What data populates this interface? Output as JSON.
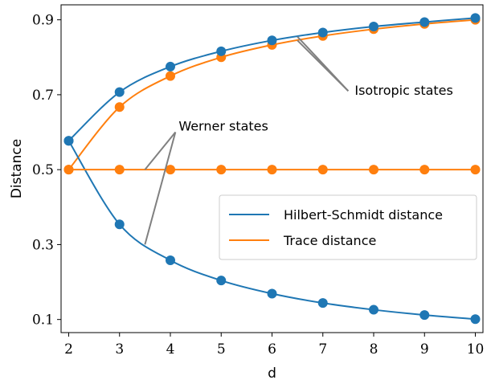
{
  "chart_data": {
    "type": "line",
    "xlabel": "d",
    "ylabel": "Distance",
    "xlim": [
      1.85,
      10.15
    ],
    "ylim": [
      0.065,
      0.94
    ],
    "x_ticks": [
      2,
      3,
      4,
      5,
      6,
      7,
      8,
      9,
      10
    ],
    "y_ticks": [
      0.1,
      0.3,
      0.5,
      0.7,
      0.9
    ],
    "y_tick_labels": [
      "0.1",
      "0.3",
      "0.5",
      "0.7",
      "0.9"
    ],
    "grid": false,
    "legend_position": "center-right",
    "legend": [
      {
        "label": "Hilbert-Schmidt distance",
        "color": "#1f77b4"
      },
      {
        "label": "Trace distance",
        "color": "#ff7f0e"
      }
    ],
    "series": [
      {
        "name": "Hilbert-Schmidt distance",
        "group": "Isotropic states",
        "color": "#1f77b4",
        "x": [
          2,
          3,
          4,
          5,
          6,
          7,
          8,
          9,
          10
        ],
        "values": [
          0.577,
          0.707,
          0.775,
          0.816,
          0.845,
          0.866,
          0.882,
          0.894,
          0.905
        ]
      },
      {
        "name": "Trace distance",
        "group": "Isotropic states",
        "color": "#ff7f0e",
        "x": [
          2,
          3,
          4,
          5,
          6,
          7,
          8,
          9,
          10
        ],
        "values": [
          0.5,
          0.667,
          0.75,
          0.8,
          0.833,
          0.857,
          0.875,
          0.889,
          0.9
        ]
      },
      {
        "name": "Hilbert-Schmidt distance",
        "group": "Werner states",
        "color": "#1f77b4",
        "x": [
          2,
          3,
          4,
          5,
          6,
          7,
          8,
          9,
          10
        ],
        "values": [
          0.577,
          0.354,
          0.258,
          0.204,
          0.169,
          0.144,
          0.126,
          0.112,
          0.101
        ]
      },
      {
        "name": "Trace distance",
        "group": "Werner states",
        "color": "#ff7f0e",
        "x": [
          2,
          3,
          4,
          5,
          6,
          7,
          8,
          9,
          10
        ],
        "values": [
          0.5,
          0.5,
          0.5,
          0.5,
          0.5,
          0.5,
          0.5,
          0.5,
          0.5
        ]
      }
    ],
    "annotations": [
      {
        "text": "Isotropic states",
        "targets": [
          [
            6.5,
            0.855
          ],
          [
            6.5,
            0.845
          ]
        ],
        "text_at": [
          7.5,
          0.71
        ]
      },
      {
        "text": "Werner states",
        "targets": [
          [
            3.5,
            0.5
          ],
          [
            3.5,
            0.3
          ]
        ],
        "text_at": [
          4.1,
          0.6
        ]
      }
    ]
  }
}
